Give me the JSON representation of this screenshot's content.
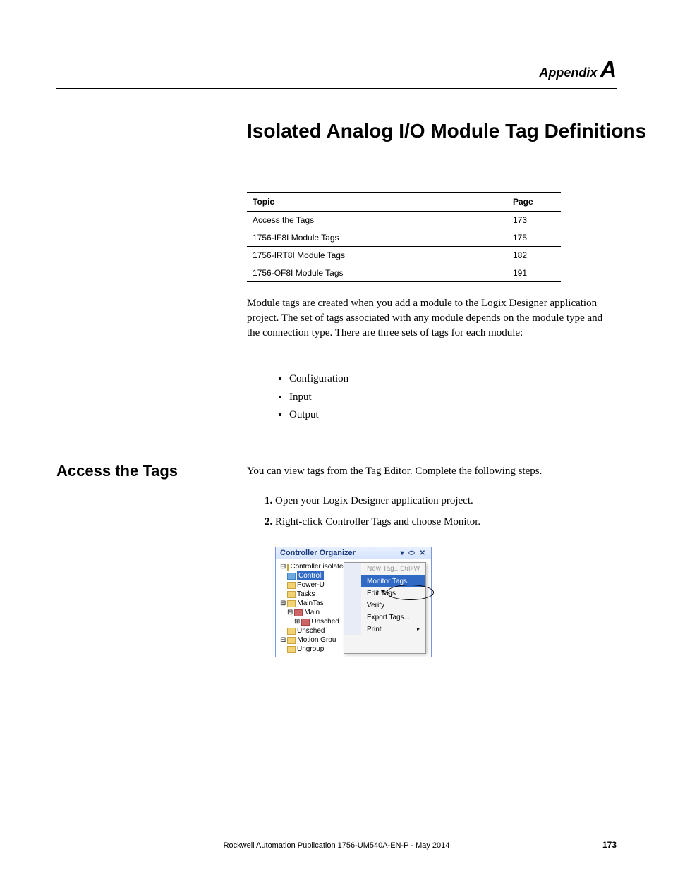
{
  "header": {
    "appendix_text": "Appendix",
    "appendix_letter": "A"
  },
  "title": "Isolated Analog I/O Module Tag Definitions",
  "topic_table": {
    "headers": {
      "topic": "Topic",
      "page": "Page"
    },
    "rows": [
      {
        "topic": "Access the Tags",
        "page": "173"
      },
      {
        "topic": "1756-IF8I Module Tags",
        "page": "175"
      },
      {
        "topic": "1756-IRT8I Module Tags",
        "page": "182"
      },
      {
        "topic": "1756-OF8I Module Tags",
        "page": "191"
      }
    ]
  },
  "intro_para": "Module tags are created when you add a module to the Logix Designer application project. The set of tags associated with any module depends on the module type and the connection type. There are three sets of tags for each module:",
  "bullets": [
    "Configuration",
    "Input",
    "Output"
  ],
  "section": {
    "heading": "Access the Tags",
    "para": "You can view tags from the Tag Editor. Complete the following steps.",
    "steps": [
      "Open your Logix Designer application project.",
      "Right-click Controller Tags and choose Monitor."
    ]
  },
  "screenshot": {
    "title": "Controller Organizer",
    "titlebar_controls": "▾ ⬭ ✕",
    "tree": {
      "root": "Controller isolated_analog_IO_modules",
      "selected": "Controll",
      "items": [
        "Controll",
        "Power-U",
        "Tasks",
        "MainTas",
        "Main",
        "Unsched",
        "Motion Grou",
        "Ungroup"
      ]
    },
    "menu": {
      "new_tag": "New Tag...",
      "new_tag_shortcut": "Ctrl+W",
      "monitor_tags": "Monitor Tags",
      "edit_tags": "Edit Tags",
      "verify": "Verify",
      "export_tags": "Export Tags...",
      "print": "Print"
    }
  },
  "footer": "Rockwell Automation Publication 1756-UM540A-EN-P - May 2014",
  "page_number": "173",
  "colors": {
    "text": "#000000",
    "background": "#ffffff",
    "highlight_blue": "#316ac5",
    "titlebar_gradient_start": "#e8f0ff",
    "titlebar_gradient_end": "#d6e4ff",
    "border_blue": "#7a96df"
  },
  "fonts": {
    "body_family": "Georgia, Times New Roman, serif",
    "heading_family": "Arial, Helvetica, sans-serif",
    "title_size": 28,
    "section_heading_size": 22,
    "body_size": 15,
    "table_size": 12,
    "footer_size": 11
  }
}
